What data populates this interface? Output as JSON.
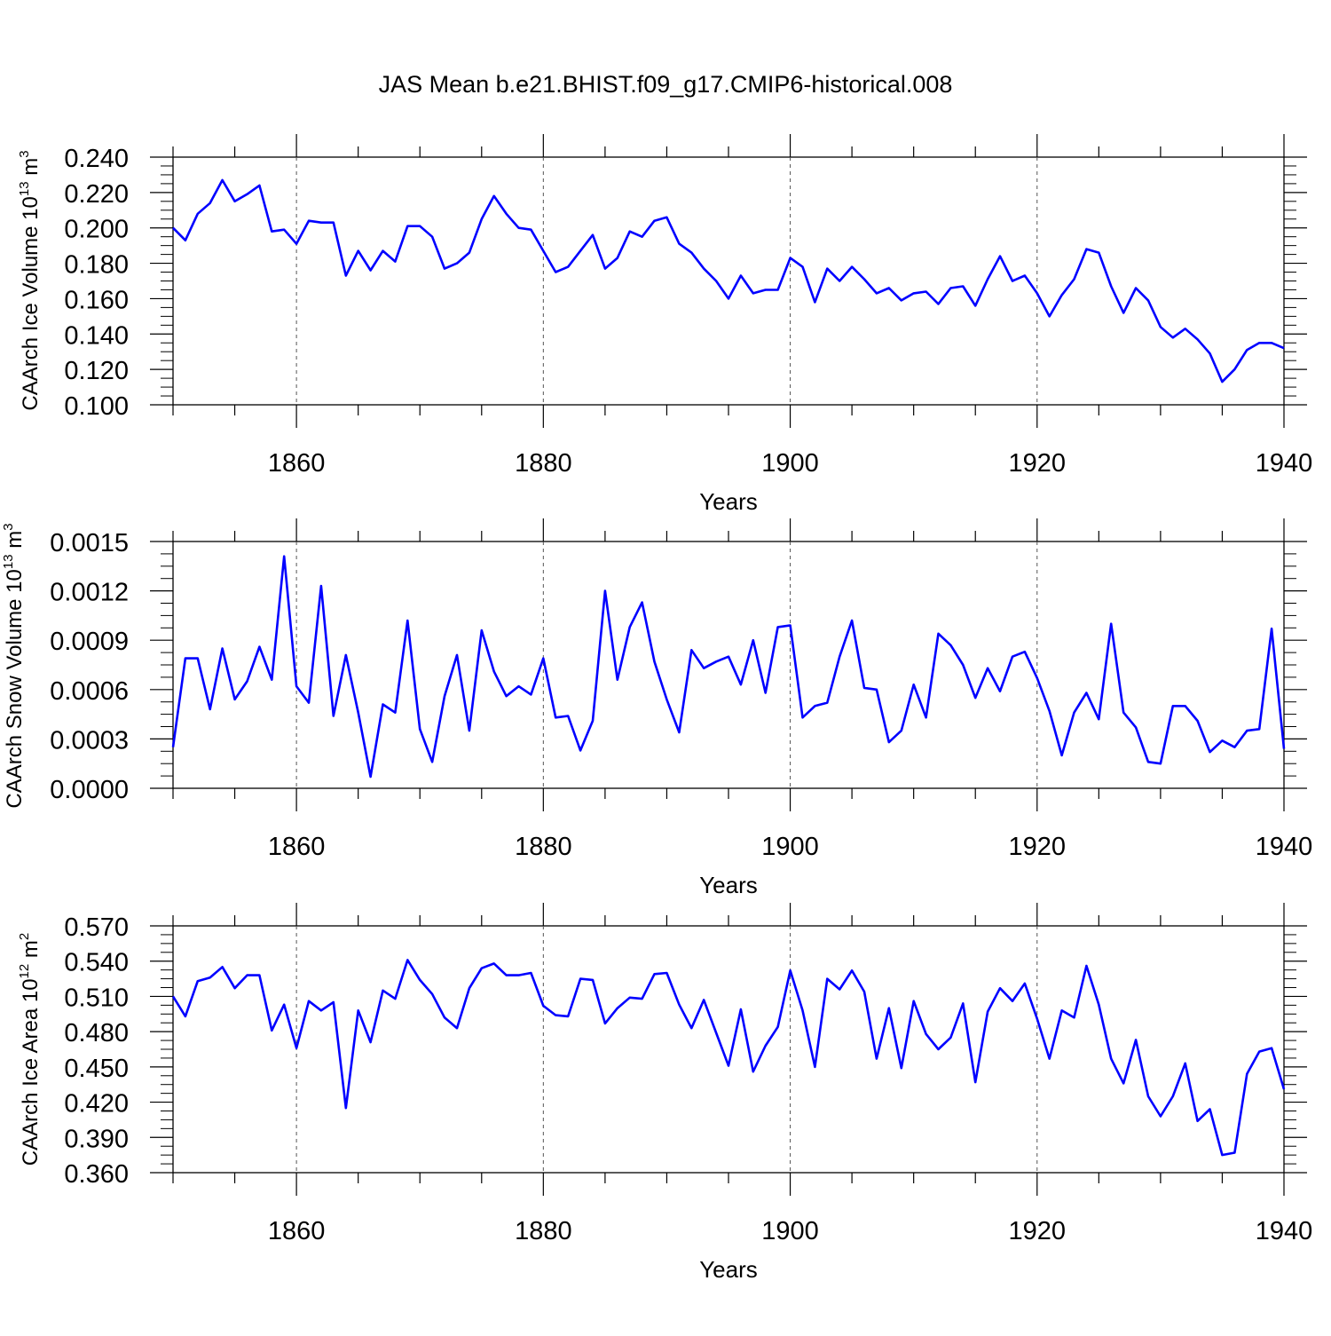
{
  "title": "JAS Mean b.e21.BHIST.f09_g17.CMIP6-historical.008",
  "colors": {
    "series": "#0000ff",
    "axis": "#000000",
    "grid": "#555555"
  },
  "chart_data": [
    {
      "type": "line",
      "title": "JAS Mean b.e21.BHIST.f09_g17.CMIP6-historical.008",
      "xlabel": "Years",
      "ylabel_main": "CAArch Ice Volume 10",
      "ylabel_exp": "13",
      "ylabel_unit": " m",
      "ylabel_unit_exp": "3",
      "xlim": [
        1850,
        1940
      ],
      "ylim": [
        0.1,
        0.24
      ],
      "xticks": [
        "1860",
        "1880",
        "1900",
        "1920",
        "1940"
      ],
      "yticks": [
        "0.100",
        "0.120",
        "0.140",
        "0.160",
        "0.180",
        "0.200",
        "0.220",
        "0.240"
      ],
      "x_start": 1850,
      "values": [
        0.2,
        0.193,
        0.208,
        0.214,
        0.227,
        0.215,
        0.219,
        0.224,
        0.198,
        0.199,
        0.191,
        0.204,
        0.203,
        0.203,
        0.173,
        0.187,
        0.176,
        0.187,
        0.181,
        0.201,
        0.201,
        0.195,
        0.177,
        0.18,
        0.186,
        0.205,
        0.218,
        0.208,
        0.2,
        0.199,
        0.187,
        0.175,
        0.178,
        0.187,
        0.196,
        0.177,
        0.183,
        0.198,
        0.195,
        0.204,
        0.206,
        0.191,
        0.186,
        0.177,
        0.17,
        0.16,
        0.173,
        0.163,
        0.165,
        0.165,
        0.183,
        0.178,
        0.158,
        0.177,
        0.17,
        0.178,
        0.171,
        0.163,
        0.166,
        0.159,
        0.163,
        0.164,
        0.157,
        0.166,
        0.167,
        0.156,
        0.171,
        0.184,
        0.17,
        0.173,
        0.163,
        0.15,
        0.162,
        0.171,
        0.188,
        0.186,
        0.167,
        0.152,
        0.166,
        0.159,
        0.144,
        0.138,
        0.143,
        0.137,
        0.129,
        0.113,
        0.12,
        0.131,
        0.135,
        0.135,
        0.132
      ]
    },
    {
      "type": "line",
      "title": "",
      "xlabel": "Years",
      "ylabel_main": "CAArch Snow Volume 10",
      "ylabel_exp": "13",
      "ylabel_unit": " m",
      "ylabel_unit_exp": "3",
      "xlim": [
        1850,
        1940
      ],
      "ylim": [
        0.0,
        0.0015
      ],
      "xticks": [
        "1860",
        "1880",
        "1900",
        "1920",
        "1940"
      ],
      "yticks": [
        "0.0000",
        "0.0003",
        "0.0006",
        "0.0009",
        "0.0012",
        "0.0015"
      ],
      "x_start": 1850,
      "values": [
        0.00025,
        0.00079,
        0.00079,
        0.00048,
        0.00085,
        0.00054,
        0.00065,
        0.00086,
        0.00066,
        0.00141,
        0.00062,
        0.00052,
        0.00123,
        0.00044,
        0.00081,
        0.00046,
        7e-05,
        0.00051,
        0.00046,
        0.00102,
        0.00036,
        0.00016,
        0.00056,
        0.00081,
        0.00035,
        0.00096,
        0.00071,
        0.00056,
        0.00062,
        0.00057,
        0.00079,
        0.00043,
        0.00044,
        0.00023,
        0.00041,
        0.0012,
        0.00066,
        0.00098,
        0.00113,
        0.00077,
        0.00054,
        0.00034,
        0.00084,
        0.00073,
        0.00077,
        0.0008,
        0.00063,
        0.0009,
        0.00058,
        0.00098,
        0.00099,
        0.00043,
        0.0005,
        0.00052,
        0.0008,
        0.00102,
        0.00061,
        0.0006,
        0.00028,
        0.00035,
        0.00063,
        0.00043,
        0.00094,
        0.00087,
        0.00075,
        0.00055,
        0.00073,
        0.00059,
        0.0008,
        0.00083,
        0.00067,
        0.00047,
        0.0002,
        0.00046,
        0.00058,
        0.00042,
        0.001,
        0.00046,
        0.00037,
        0.00016,
        0.00015,
        0.0005,
        0.0005,
        0.00041,
        0.00022,
        0.00029,
        0.00025,
        0.00035,
        0.00036,
        0.00097,
        0.00024
      ]
    },
    {
      "type": "line",
      "title": "",
      "xlabel": "Years",
      "ylabel_main": "CAArch Ice Area 10",
      "ylabel_exp": "12",
      "ylabel_unit": " m",
      "ylabel_unit_exp": "2",
      "xlim": [
        1850,
        1940
      ],
      "ylim": [
        0.36,
        0.57
      ],
      "xticks": [
        "1860",
        "1880",
        "1900",
        "1920",
        "1940"
      ],
      "yticks": [
        "0.360",
        "0.390",
        "0.420",
        "0.450",
        "0.480",
        "0.510",
        "0.540",
        "0.570"
      ],
      "x_start": 1850,
      "values": [
        0.51,
        0.493,
        0.523,
        0.526,
        0.535,
        0.517,
        0.528,
        0.528,
        0.481,
        0.503,
        0.466,
        0.506,
        0.498,
        0.505,
        0.415,
        0.498,
        0.471,
        0.515,
        0.508,
        0.541,
        0.524,
        0.512,
        0.492,
        0.483,
        0.517,
        0.534,
        0.538,
        0.528,
        0.528,
        0.53,
        0.502,
        0.494,
        0.493,
        0.525,
        0.524,
        0.487,
        0.5,
        0.509,
        0.508,
        0.529,
        0.53,
        0.503,
        0.483,
        0.507,
        0.479,
        0.451,
        0.499,
        0.446,
        0.468,
        0.484,
        0.532,
        0.498,
        0.45,
        0.525,
        0.516,
        0.532,
        0.514,
        0.457,
        0.5,
        0.449,
        0.506,
        0.478,
        0.465,
        0.475,
        0.504,
        0.437,
        0.497,
        0.517,
        0.506,
        0.521,
        0.491,
        0.457,
        0.498,
        0.492,
        0.536,
        0.503,
        0.457,
        0.436,
        0.473,
        0.425,
        0.408,
        0.425,
        0.453,
        0.404,
        0.414,
        0.375,
        0.377,
        0.444,
        0.463,
        0.466,
        0.431
      ]
    }
  ]
}
